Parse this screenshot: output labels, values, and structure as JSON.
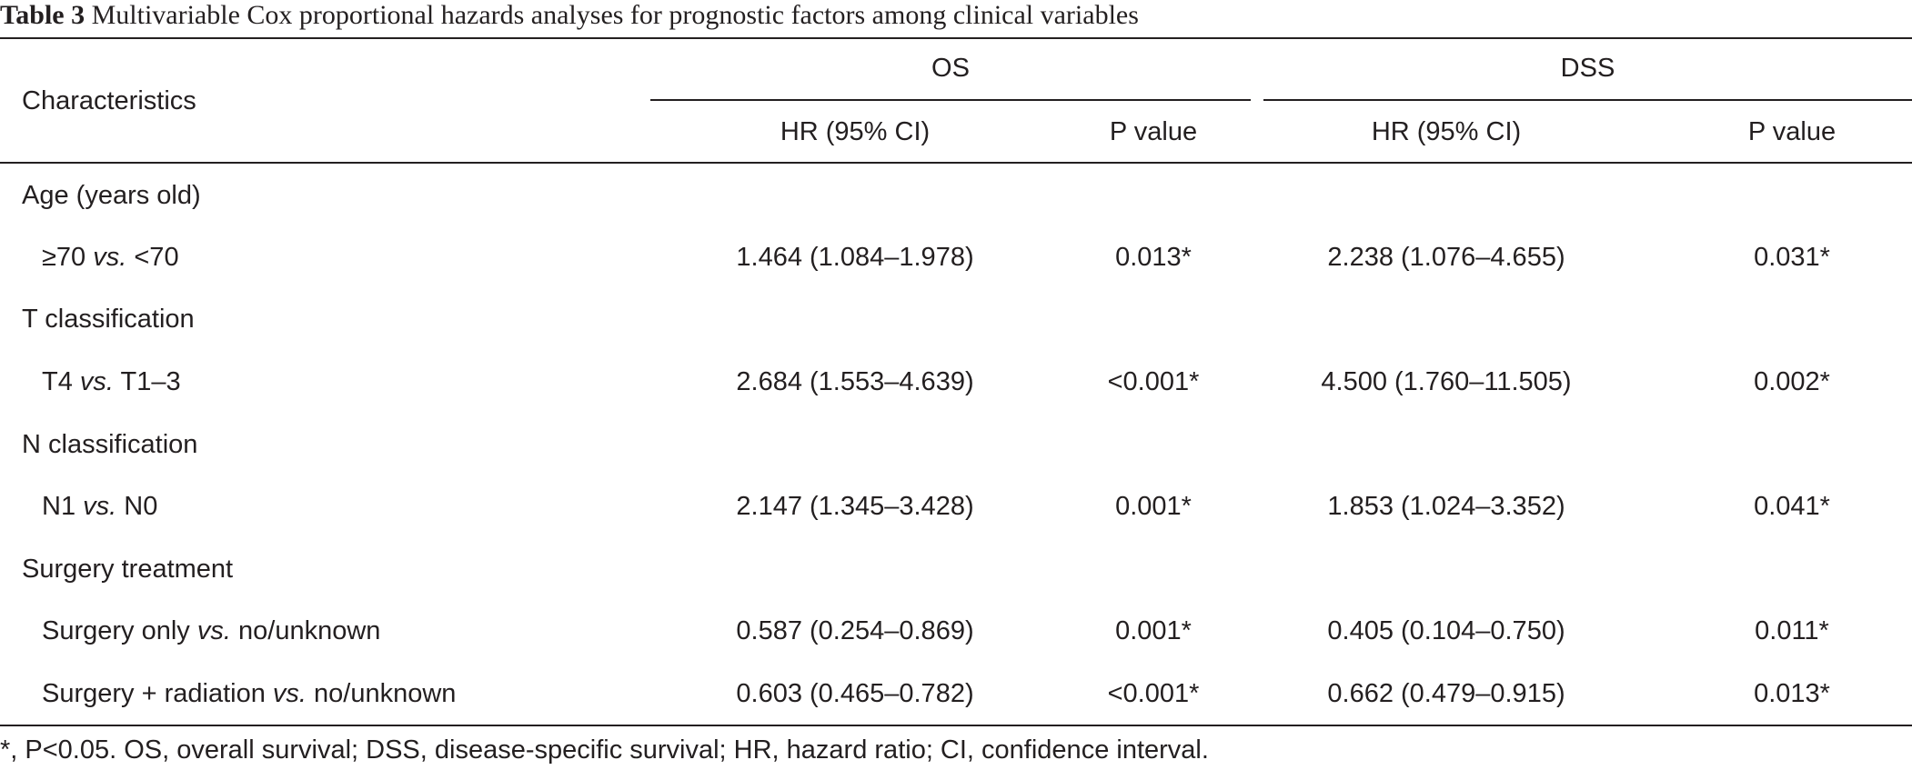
{
  "caption": {
    "label": "Table 3",
    "title": "Multivariable Cox proportional hazards analyses for prognostic factors among clinical variables"
  },
  "table": {
    "header": {
      "characteristics": "Characteristics",
      "group_os": "OS",
      "group_dss": "DSS",
      "os_hr": "HR (95% CI)",
      "os_p": "P value",
      "dss_hr": "HR (95% CI)",
      "dss_p": "P value"
    },
    "rows": [
      {
        "kind": "group",
        "label": "Age (years old)"
      },
      {
        "kind": "data",
        "label_a": "≥70",
        "vs": "vs.",
        "label_b": "<70",
        "os_hr": "1.464 (1.084–1.978)",
        "os_p": "0.013*",
        "dss_hr": "2.238 (1.076–4.655)",
        "dss_p": "0.031*"
      },
      {
        "kind": "group",
        "label": "T classification"
      },
      {
        "kind": "data",
        "label_a": "T4",
        "vs": "vs.",
        "label_b": "T1–3",
        "os_hr": "2.684 (1.553–4.639)",
        "os_p": "<0.001*",
        "dss_hr": "4.500 (1.760–11.505)",
        "dss_p": "0.002*"
      },
      {
        "kind": "group",
        "label": "N classification"
      },
      {
        "kind": "data",
        "label_a": "N1",
        "vs": "vs.",
        "label_b": "N0",
        "os_hr": "2.147 (1.345–3.428)",
        "os_p": "0.001*",
        "dss_hr": "1.853 (1.024–3.352)",
        "dss_p": "0.041*"
      },
      {
        "kind": "group",
        "label": "Surgery treatment"
      },
      {
        "kind": "data",
        "label_a": "Surgery only",
        "vs": "vs.",
        "label_b": "no/unknown",
        "os_hr": "0.587 (0.254–0.869)",
        "os_p": "0.001*",
        "dss_hr": "0.405 (0.104–0.750)",
        "dss_p": "0.011*"
      },
      {
        "kind": "data",
        "label_a": "Surgery + radiation",
        "vs": "vs.",
        "label_b": "no/unknown",
        "os_hr": "0.603 (0.465–0.782)",
        "os_p": "<0.001*",
        "dss_hr": "0.662 (0.479–0.915)",
        "dss_p": "0.013*"
      }
    ]
  },
  "footnote": "*, P<0.05. OS, overall survival; DSS, disease-specific survival; HR, hazard ratio; CI, confidence interval."
}
